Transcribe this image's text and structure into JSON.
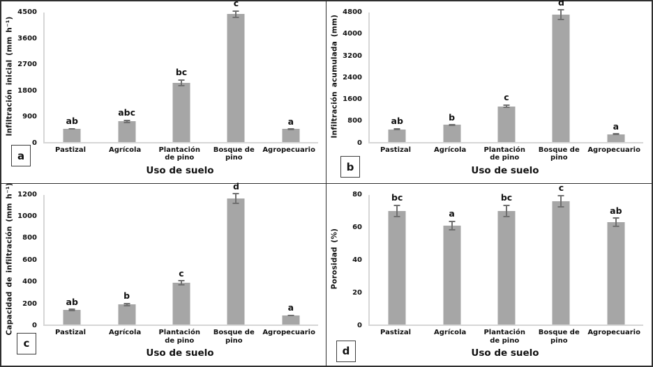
{
  "style": {
    "bar_color": "#a6a6a6",
    "error_color": "#6f6f6f",
    "axis_color": "#d6d6d6",
    "text_color": "#111111",
    "border_color": "#2e2e2e"
  },
  "chart_data": [
    {
      "type": "bar",
      "panel": "a",
      "ylabel": "Infiltración inicial (mm h⁻¹)",
      "xlabel": "Uso de suelo",
      "categories": [
        "Pastizal",
        "Agrícola",
        "Plantación de pino",
        "Bosque de pino",
        "Agropecuario"
      ],
      "values": [
        455,
        710,
        2060,
        4440,
        440
      ],
      "errors": [
        30,
        60,
        120,
        140,
        30
      ],
      "sig_letters": [
        "ab",
        "abc",
        "bc",
        "c",
        "a"
      ],
      "ylim": [
        0,
        4500
      ],
      "yticks": [
        0,
        900,
        1800,
        2700,
        3600,
        4500
      ],
      "grid": false,
      "legend": false
    },
    {
      "type": "bar",
      "panel": "b",
      "ylabel": "Infiltración acumulada (mm)",
      "xlabel": "Uso de suelo",
      "categories": [
        "Pastizal",
        "Agrícola",
        "Plantación de pino",
        "Bosque de pino",
        "Agropecuario"
      ],
      "values": [
        465,
        625,
        1320,
        4720,
        285
      ],
      "errors": [
        40,
        30,
        70,
        200,
        15
      ],
      "sig_letters": [
        "ab",
        "b",
        "c",
        "d",
        "a"
      ],
      "ylim": [
        0,
        4800
      ],
      "yticks": [
        0,
        800,
        1600,
        2400,
        3200,
        4000,
        4800
      ],
      "grid": false,
      "legend": false
    },
    {
      "type": "bar",
      "panel": "c",
      "ylabel": "Capacidad de infiltración (mm h⁻¹)",
      "xlabel": "Uso de suelo",
      "categories": [
        "Pastizal",
        "Agrícola",
        "Plantación de pino",
        "Bosque de pino",
        "Agropecuario"
      ],
      "values": [
        135,
        185,
        385,
        1165,
        85
      ],
      "errors": [
        10,
        15,
        25,
        50,
        8
      ],
      "sig_letters": [
        "ab",
        "b",
        "c",
        "d",
        "a"
      ],
      "ylim": [
        0,
        1200
      ],
      "yticks": [
        0,
        200,
        400,
        600,
        800,
        1000,
        1200
      ],
      "grid": false,
      "legend": false
    },
    {
      "type": "bar",
      "panel": "d",
      "ylabel": "Porosidad (%)",
      "xlabel": "Uso de suelo",
      "categories": [
        "Pastizal",
        "Agrícola",
        "Plantación de pino",
        "Bosque de pino",
        "Agropecuario"
      ],
      "values": [
        70,
        61,
        70,
        76,
        63
      ],
      "errors": [
        4,
        3,
        4,
        4,
        3
      ],
      "sig_letters": [
        "bc",
        "a",
        "bc",
        "c",
        "ab"
      ],
      "ylim": [
        0,
        80
      ],
      "yticks": [
        0,
        20,
        40,
        60,
        80
      ],
      "grid": false,
      "legend": false
    }
  ]
}
